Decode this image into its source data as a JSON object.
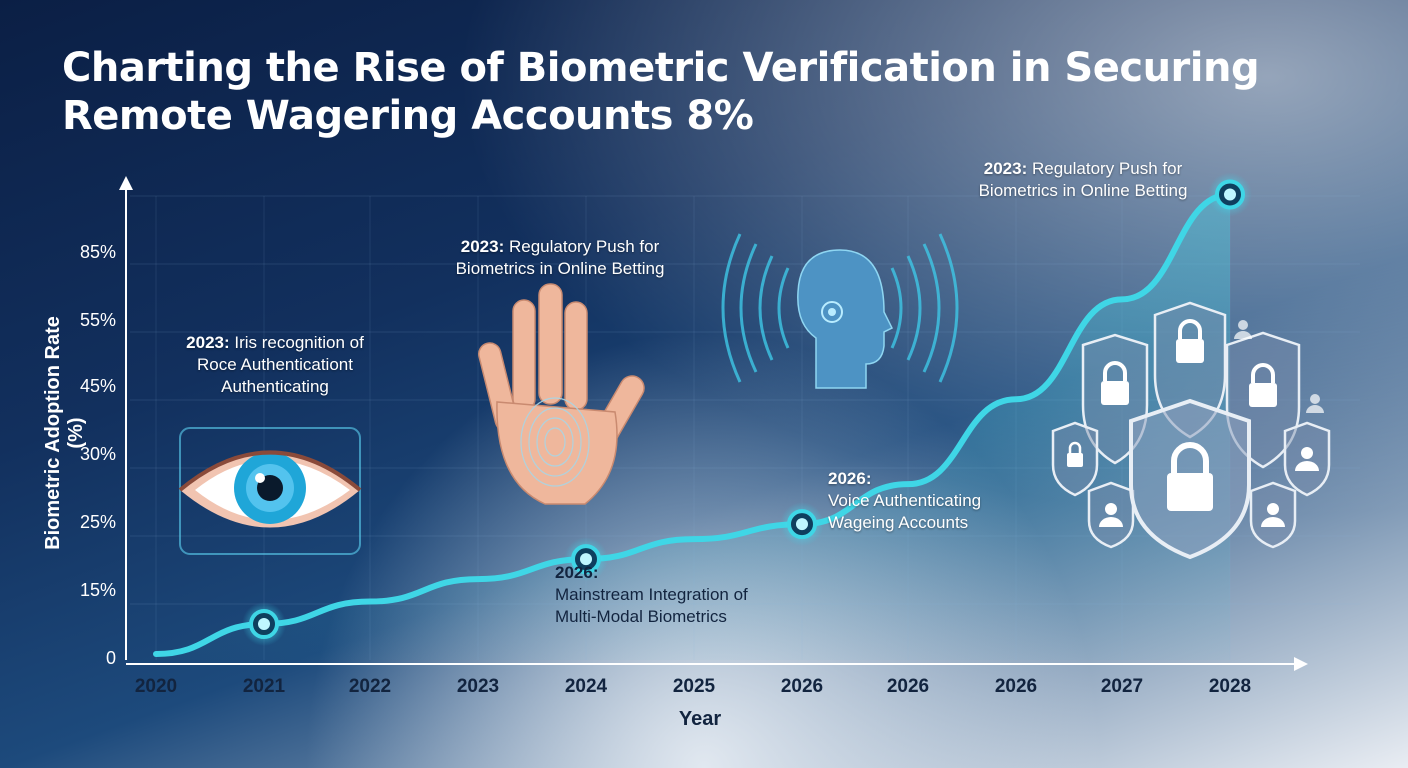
{
  "title": "Charting the Rise of Biometric Verification in Securing Remote Wagering Accounts 8%",
  "chart_data": {
    "type": "line",
    "xlabel": "Year",
    "ylabel": "Biometric Adoption Rate (%)",
    "x_tick_labels": [
      "2020",
      "2021",
      "2022",
      "2023",
      "2024",
      "2025",
      "2026",
      "2026",
      "2026",
      "2027",
      "2028"
    ],
    "y_tick_labels": [
      "0",
      "15%",
      "25%",
      "30%",
      "45%",
      "55%",
      "85%"
    ],
    "series": [
      {
        "points": [
          {
            "x_index": 0,
            "y": 2
          },
          {
            "x_index": 1,
            "y": 8
          },
          {
            "x_index": 2,
            "y": 12.5
          },
          {
            "x_index": 3,
            "y": 17
          },
          {
            "x_index": 4,
            "y": 21
          },
          {
            "x_index": 5,
            "y": 25
          },
          {
            "x_index": 6,
            "y": 28
          },
          {
            "x_index": 7,
            "y": 36
          },
          {
            "x_index": 8,
            "y": 53
          },
          {
            "x_index": 9,
            "y": 73
          },
          {
            "x_index": 10,
            "y": 94
          }
        ],
        "markers": [
          1,
          4,
          6,
          10
        ]
      }
    ],
    "grid": true,
    "accent_color": "#3fd6e6"
  },
  "annotations": [
    {
      "id": "iris",
      "year": "2023:",
      "lines": [
        "Iris recognition of",
        "Roce Authenticationt",
        "Authenticating"
      ]
    },
    {
      "id": "palm",
      "year": "2023:",
      "lines": [
        "Regulatory Push for",
        "Biometrics in Online Betting"
      ]
    },
    {
      "id": "top",
      "year": "2023:",
      "lines": [
        "Regulatory Push for",
        "Biometrics in Online Betting"
      ]
    },
    {
      "id": "mainstream",
      "year": "2026:",
      "lines": [
        "Mainstream Integration of",
        "Multi-Modal Biometrics"
      ]
    },
    {
      "id": "voice",
      "year": "2026:",
      "lines": [
        "Voice Authenticating",
        "Wageing Accounts"
      ]
    }
  ],
  "illustrations": [
    "eye-icon",
    "hand-icon",
    "voice-head-icon",
    "shield-lock-icon"
  ]
}
